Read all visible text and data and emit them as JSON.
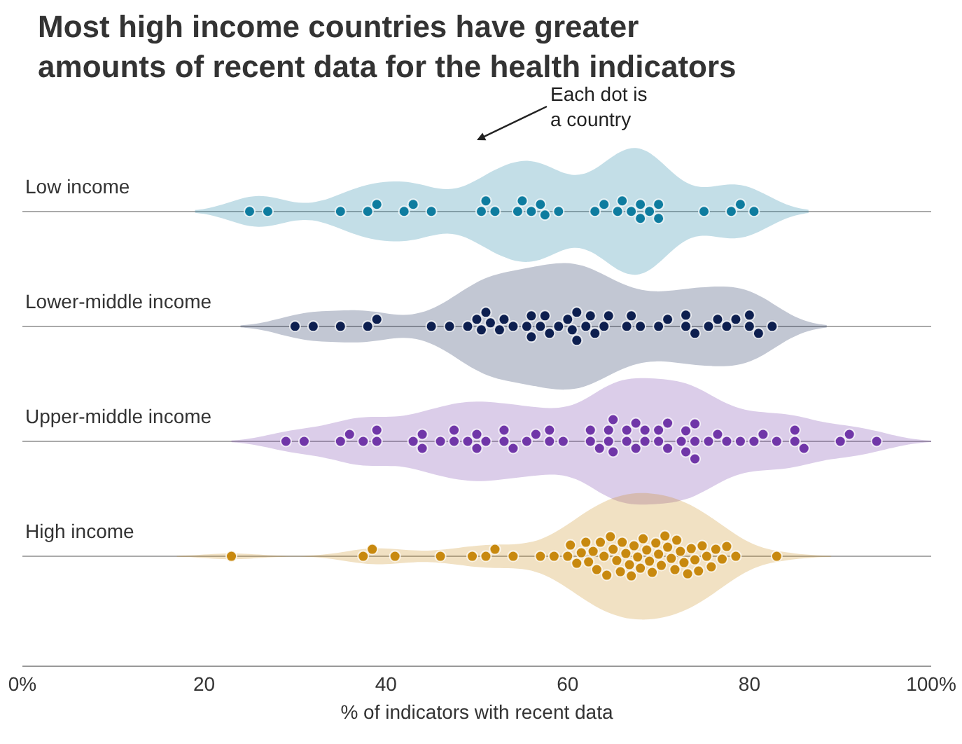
{
  "chart_data": {
    "type": "scatter",
    "orientation": "horizontal",
    "title": "Most high income countries have greater\namounts of recent data for the health indicators",
    "xlabel": "% of indicators with recent data",
    "categories": [
      "Low income",
      "Lower-middle income",
      "Upper-middle income",
      "High income"
    ],
    "xlim": [
      0,
      100
    ],
    "xticks": [
      {
        "value": 0,
        "label": "0%"
      },
      20,
      40,
      60,
      80,
      {
        "value": 100,
        "label": "100%"
      }
    ],
    "grid": "y",
    "marker": "circle",
    "annotations": [
      "Each dot is\na country"
    ],
    "series": [
      {
        "color": "#0e7c9f",
        "x": [
          "Low income",
          "Low income",
          "Low income",
          "Low income",
          "Low income",
          "Low income",
          "Low income",
          "Low income",
          "Low income",
          "Low income",
          "Low income",
          "Low income",
          "Low income",
          "Low income",
          "Low income",
          "Low income",
          "Low income",
          "Low income",
          "Low income",
          "Low income",
          "Low income",
          "Low income",
          "Low income",
          "Low income",
          "Low income",
          "Low income",
          "Low income",
          "Low income",
          "Low income",
          "Low income",
          "Low income"
        ],
        "values": [
          25,
          27,
          35,
          38,
          39,
          42,
          43,
          45,
          50.5,
          51,
          52,
          54.5,
          55,
          56,
          57,
          57.5,
          59,
          63,
          64,
          65.5,
          66,
          67,
          68,
          68,
          69,
          70,
          70,
          75,
          78,
          79,
          80.5
        ]
      },
      {
        "color": "#0d1f4f",
        "x": [
          "Lower-middle income",
          "Lower-middle income",
          "Lower-middle income",
          "Lower-middle income",
          "Lower-middle income",
          "Lower-middle income",
          "Lower-middle income",
          "Lower-middle income",
          "Lower-middle income",
          "Lower-middle income",
          "Lower-middle income",
          "Lower-middle income",
          "Lower-middle income",
          "Lower-middle income",
          "Lower-middle income",
          "Lower-middle income",
          "Lower-middle income",
          "Lower-middle income",
          "Lower-middle income",
          "Lower-middle income",
          "Lower-middle income",
          "Lower-middle income",
          "Lower-middle income",
          "Lower-middle income",
          "Lower-middle income",
          "Lower-middle income",
          "Lower-middle income",
          "Lower-middle income",
          "Lower-middle income",
          "Lower-middle income",
          "Lower-middle income",
          "Lower-middle income",
          "Lower-middle income",
          "Lower-middle income",
          "Lower-middle income",
          "Lower-middle income",
          "Lower-middle income",
          "Lower-middle income",
          "Lower-middle income",
          "Lower-middle income",
          "Lower-middle income",
          "Lower-middle income",
          "Lower-middle income",
          "Lower-middle income",
          "Lower-middle income",
          "Lower-middle income",
          "Lower-middle income"
        ],
        "values": [
          30,
          32,
          35,
          38,
          39,
          45,
          47,
          49,
          50,
          50.5,
          51,
          51.5,
          52.5,
          53,
          54,
          55.5,
          56,
          56,
          57,
          57.5,
          58,
          59,
          60,
          60.5,
          61,
          61,
          62,
          62.5,
          63,
          64,
          64.5,
          66.5,
          67,
          68,
          70,
          71,
          73,
          73,
          74,
          75.5,
          76.5,
          77.5,
          78.5,
          80,
          80,
          81,
          82.5
        ]
      },
      {
        "color": "#7036a8",
        "x": [
          "Upper-middle income",
          "Upper-middle income",
          "Upper-middle income",
          "Upper-middle income",
          "Upper-middle income",
          "Upper-middle income",
          "Upper-middle income",
          "Upper-middle income",
          "Upper-middle income",
          "Upper-middle income",
          "Upper-middle income",
          "Upper-middle income",
          "Upper-middle income",
          "Upper-middle income",
          "Upper-middle income",
          "Upper-middle income",
          "Upper-middle income",
          "Upper-middle income",
          "Upper-middle income",
          "Upper-middle income",
          "Upper-middle income",
          "Upper-middle income",
          "Upper-middle income",
          "Upper-middle income",
          "Upper-middle income",
          "Upper-middle income",
          "Upper-middle income",
          "Upper-middle income",
          "Upper-middle income",
          "Upper-middle income",
          "Upper-middle income",
          "Upper-middle income",
          "Upper-middle income",
          "Upper-middle income",
          "Upper-middle income",
          "Upper-middle income",
          "Upper-middle income",
          "Upper-middle income",
          "Upper-middle income",
          "Upper-middle income",
          "Upper-middle income",
          "Upper-middle income",
          "Upper-middle income",
          "Upper-middle income",
          "Upper-middle income",
          "Upper-middle income",
          "Upper-middle income",
          "Upper-middle income",
          "Upper-middle income",
          "Upper-middle income",
          "Upper-middle income",
          "Upper-middle income",
          "Upper-middle income",
          "Upper-middle income",
          "Upper-middle income",
          "Upper-middle income",
          "Upper-middle income",
          "Upper-middle income",
          "Upper-middle income",
          "Upper-middle income",
          "Upper-middle income"
        ],
        "values": [
          29,
          31,
          35,
          36,
          37.5,
          39,
          39,
          43,
          44,
          44,
          46,
          47.5,
          47.5,
          49,
          50,
          50,
          51,
          53,
          53,
          54,
          55.5,
          56.5,
          58,
          58,
          59.5,
          62.5,
          62.5,
          63.5,
          64.5,
          64.5,
          65,
          65,
          66.5,
          66.5,
          67.5,
          67.5,
          68.5,
          68.5,
          70,
          70,
          71,
          71,
          72.5,
          73,
          73,
          74,
          74,
          74,
          75.5,
          76.5,
          77.5,
          79,
          80.5,
          81.5,
          83,
          85,
          85,
          86,
          90,
          91,
          94
        ]
      },
      {
        "color": "#c8890f",
        "x": [
          "High income",
          "High income",
          "High income",
          "High income",
          "High income",
          "High income",
          "High income",
          "High income",
          "High income",
          "High income",
          "High income",
          "High income",
          "High income",
          "High income",
          "High income",
          "High income",
          "High income",
          "High income",
          "High income",
          "High income",
          "High income",
          "High income",
          "High income",
          "High income",
          "High income",
          "High income",
          "High income",
          "High income",
          "High income",
          "High income",
          "High income",
          "High income",
          "High income",
          "High income",
          "High income",
          "High income",
          "High income",
          "High income",
          "High income",
          "High income",
          "High income",
          "High income",
          "High income",
          "High income",
          "High income",
          "High income",
          "High income",
          "High income",
          "High income",
          "High income",
          "High income",
          "High income",
          "High income",
          "High income",
          "High income",
          "High income",
          "High income",
          "High income",
          "High income"
        ],
        "values": [
          23,
          37.5,
          38.5,
          41,
          46,
          49.5,
          51,
          52,
          54,
          57,
          58.5,
          60,
          60.3,
          61,
          61.5,
          62,
          62.3,
          62.8,
          63.2,
          63.6,
          64,
          64.3,
          64.7,
          65,
          65.4,
          65.8,
          66,
          66.4,
          66.8,
          67,
          67.3,
          67.7,
          68,
          68.3,
          68.7,
          69,
          69.3,
          69.7,
          70,
          70.3,
          70.7,
          71,
          71.4,
          71.8,
          72,
          72.4,
          72.8,
          73.2,
          73.6,
          74,
          74.4,
          74.8,
          75.3,
          75.8,
          76.3,
          77,
          77.5,
          78.5,
          83
        ]
      }
    ]
  }
}
